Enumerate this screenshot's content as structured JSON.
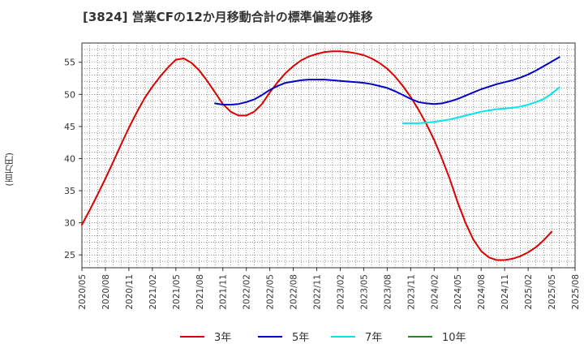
{
  "chart_data": {
    "type": "line",
    "title": "[3824]  営業CFの12か月移動合計の標準偏差の推移",
    "ylabel": "(百万円)",
    "xlabel": "",
    "ylim": [
      23,
      58
    ],
    "y_ticks": [
      25,
      30,
      35,
      40,
      45,
      50,
      55
    ],
    "x_tick_labels": [
      "2020/05",
      "2020/08",
      "2020/11",
      "2021/02",
      "2021/05",
      "2021/08",
      "2021/11",
      "2022/02",
      "2022/05",
      "2022/08",
      "2022/11",
      "2023/02",
      "2023/05",
      "2023/08",
      "2023/11",
      "2024/02",
      "2024/05",
      "2024/08",
      "2024/11",
      "2025/02",
      "2025/05",
      "2025/08"
    ],
    "grid": true,
    "legend_position": "bottom",
    "series": [
      {
        "name": "3年",
        "color": "#dd0000",
        "points": [
          [
            "2020/05",
            29.7
          ],
          [
            "2020/06",
            32.0
          ],
          [
            "2020/07",
            34.4
          ],
          [
            "2020/08",
            36.9
          ],
          [
            "2020/09",
            39.5
          ],
          [
            "2020/10",
            42.2
          ],
          [
            "2020/11",
            44.8
          ],
          [
            "2020/12",
            47.2
          ],
          [
            "2021/01",
            49.4
          ],
          [
            "2021/02",
            51.2
          ],
          [
            "2021/03",
            52.8
          ],
          [
            "2021/04",
            54.2
          ],
          [
            "2021/05",
            55.4
          ],
          [
            "2021/06",
            55.6
          ],
          [
            "2021/07",
            54.9
          ],
          [
            "2021/08",
            53.7
          ],
          [
            "2021/09",
            52.1
          ],
          [
            "2021/10",
            50.3
          ],
          [
            "2021/11",
            48.5
          ],
          [
            "2021/12",
            47.3
          ],
          [
            "2022/01",
            46.7
          ],
          [
            "2022/02",
            46.7
          ],
          [
            "2022/03",
            47.3
          ],
          [
            "2022/04",
            48.5
          ],
          [
            "2022/05",
            50.3
          ],
          [
            "2022/06",
            51.9
          ],
          [
            "2022/07",
            53.3
          ],
          [
            "2022/08",
            54.4
          ],
          [
            "2022/09",
            55.3
          ],
          [
            "2022/10",
            55.9
          ],
          [
            "2022/11",
            56.3
          ],
          [
            "2022/12",
            56.6
          ],
          [
            "2023/01",
            56.7
          ],
          [
            "2023/02",
            56.7
          ],
          [
            "2023/03",
            56.6
          ],
          [
            "2023/04",
            56.4
          ],
          [
            "2023/05",
            56.1
          ],
          [
            "2023/06",
            55.6
          ],
          [
            "2023/07",
            54.9
          ],
          [
            "2023/08",
            54.0
          ],
          [
            "2023/09",
            52.8
          ],
          [
            "2023/10",
            51.3
          ],
          [
            "2023/11",
            49.6
          ],
          [
            "2023/12",
            47.6
          ],
          [
            "2024/01",
            45.4
          ],
          [
            "2024/02",
            42.9
          ],
          [
            "2024/03",
            40.0
          ],
          [
            "2024/04",
            36.8
          ],
          [
            "2024/05",
            33.2
          ],
          [
            "2024/06",
            30.0
          ],
          [
            "2024/07",
            27.4
          ],
          [
            "2024/08",
            25.6
          ],
          [
            "2024/09",
            24.6
          ],
          [
            "2024/10",
            24.2
          ],
          [
            "2024/11",
            24.2
          ],
          [
            "2024/12",
            24.4
          ],
          [
            "2025/01",
            24.8
          ],
          [
            "2025/02",
            25.4
          ],
          [
            "2025/03",
            26.2
          ],
          [
            "2025/04",
            27.3
          ],
          [
            "2025/05",
            28.6
          ]
        ]
      },
      {
        "name": "5年",
        "color": "#0000cc",
        "points": [
          [
            "2021/10",
            48.6
          ],
          [
            "2021/11",
            48.4
          ],
          [
            "2021/12",
            48.4
          ],
          [
            "2022/01",
            48.5
          ],
          [
            "2022/02",
            48.8
          ],
          [
            "2022/03",
            49.2
          ],
          [
            "2022/04",
            49.9
          ],
          [
            "2022/05",
            50.7
          ],
          [
            "2022/06",
            51.3
          ],
          [
            "2022/07",
            51.8
          ],
          [
            "2022/08",
            52.0
          ],
          [
            "2022/09",
            52.2
          ],
          [
            "2022/10",
            52.3
          ],
          [
            "2022/11",
            52.3
          ],
          [
            "2022/12",
            52.3
          ],
          [
            "2023/01",
            52.2
          ],
          [
            "2023/02",
            52.1
          ],
          [
            "2023/03",
            52.0
          ],
          [
            "2023/04",
            51.9
          ],
          [
            "2023/05",
            51.8
          ],
          [
            "2023/06",
            51.6
          ],
          [
            "2023/07",
            51.3
          ],
          [
            "2023/08",
            51.0
          ],
          [
            "2023/09",
            50.5
          ],
          [
            "2023/10",
            49.9
          ],
          [
            "2023/11",
            49.3
          ],
          [
            "2023/12",
            48.8
          ],
          [
            "2024/01",
            48.6
          ],
          [
            "2024/02",
            48.5
          ],
          [
            "2024/03",
            48.6
          ],
          [
            "2024/04",
            48.9
          ],
          [
            "2024/05",
            49.3
          ],
          [
            "2024/06",
            49.8
          ],
          [
            "2024/07",
            50.3
          ],
          [
            "2024/08",
            50.8
          ],
          [
            "2024/09",
            51.2
          ],
          [
            "2024/10",
            51.6
          ],
          [
            "2024/11",
            51.9
          ],
          [
            "2024/12",
            52.2
          ],
          [
            "2025/01",
            52.6
          ],
          [
            "2025/02",
            53.1
          ],
          [
            "2025/03",
            53.7
          ],
          [
            "2025/04",
            54.4
          ],
          [
            "2025/05",
            55.1
          ],
          [
            "2025/06",
            55.8
          ]
        ]
      },
      {
        "name": "7年",
        "color": "#00e5ee",
        "points": [
          [
            "2023/10",
            45.5
          ],
          [
            "2023/11",
            45.5
          ],
          [
            "2023/12",
            45.5
          ],
          [
            "2024/01",
            45.6
          ],
          [
            "2024/02",
            45.7
          ],
          [
            "2024/03",
            45.9
          ],
          [
            "2024/04",
            46.1
          ],
          [
            "2024/05",
            46.4
          ],
          [
            "2024/06",
            46.7
          ],
          [
            "2024/07",
            47.0
          ],
          [
            "2024/08",
            47.3
          ],
          [
            "2024/09",
            47.5
          ],
          [
            "2024/10",
            47.7
          ],
          [
            "2024/11",
            47.8
          ],
          [
            "2024/12",
            47.9
          ],
          [
            "2025/01",
            48.1
          ],
          [
            "2025/02",
            48.4
          ],
          [
            "2025/03",
            48.8
          ],
          [
            "2025/04",
            49.3
          ],
          [
            "2025/05",
            50.1
          ],
          [
            "2025/06",
            51.1
          ]
        ]
      },
      {
        "name": "10年",
        "color": "#228b22",
        "points": []
      }
    ]
  }
}
